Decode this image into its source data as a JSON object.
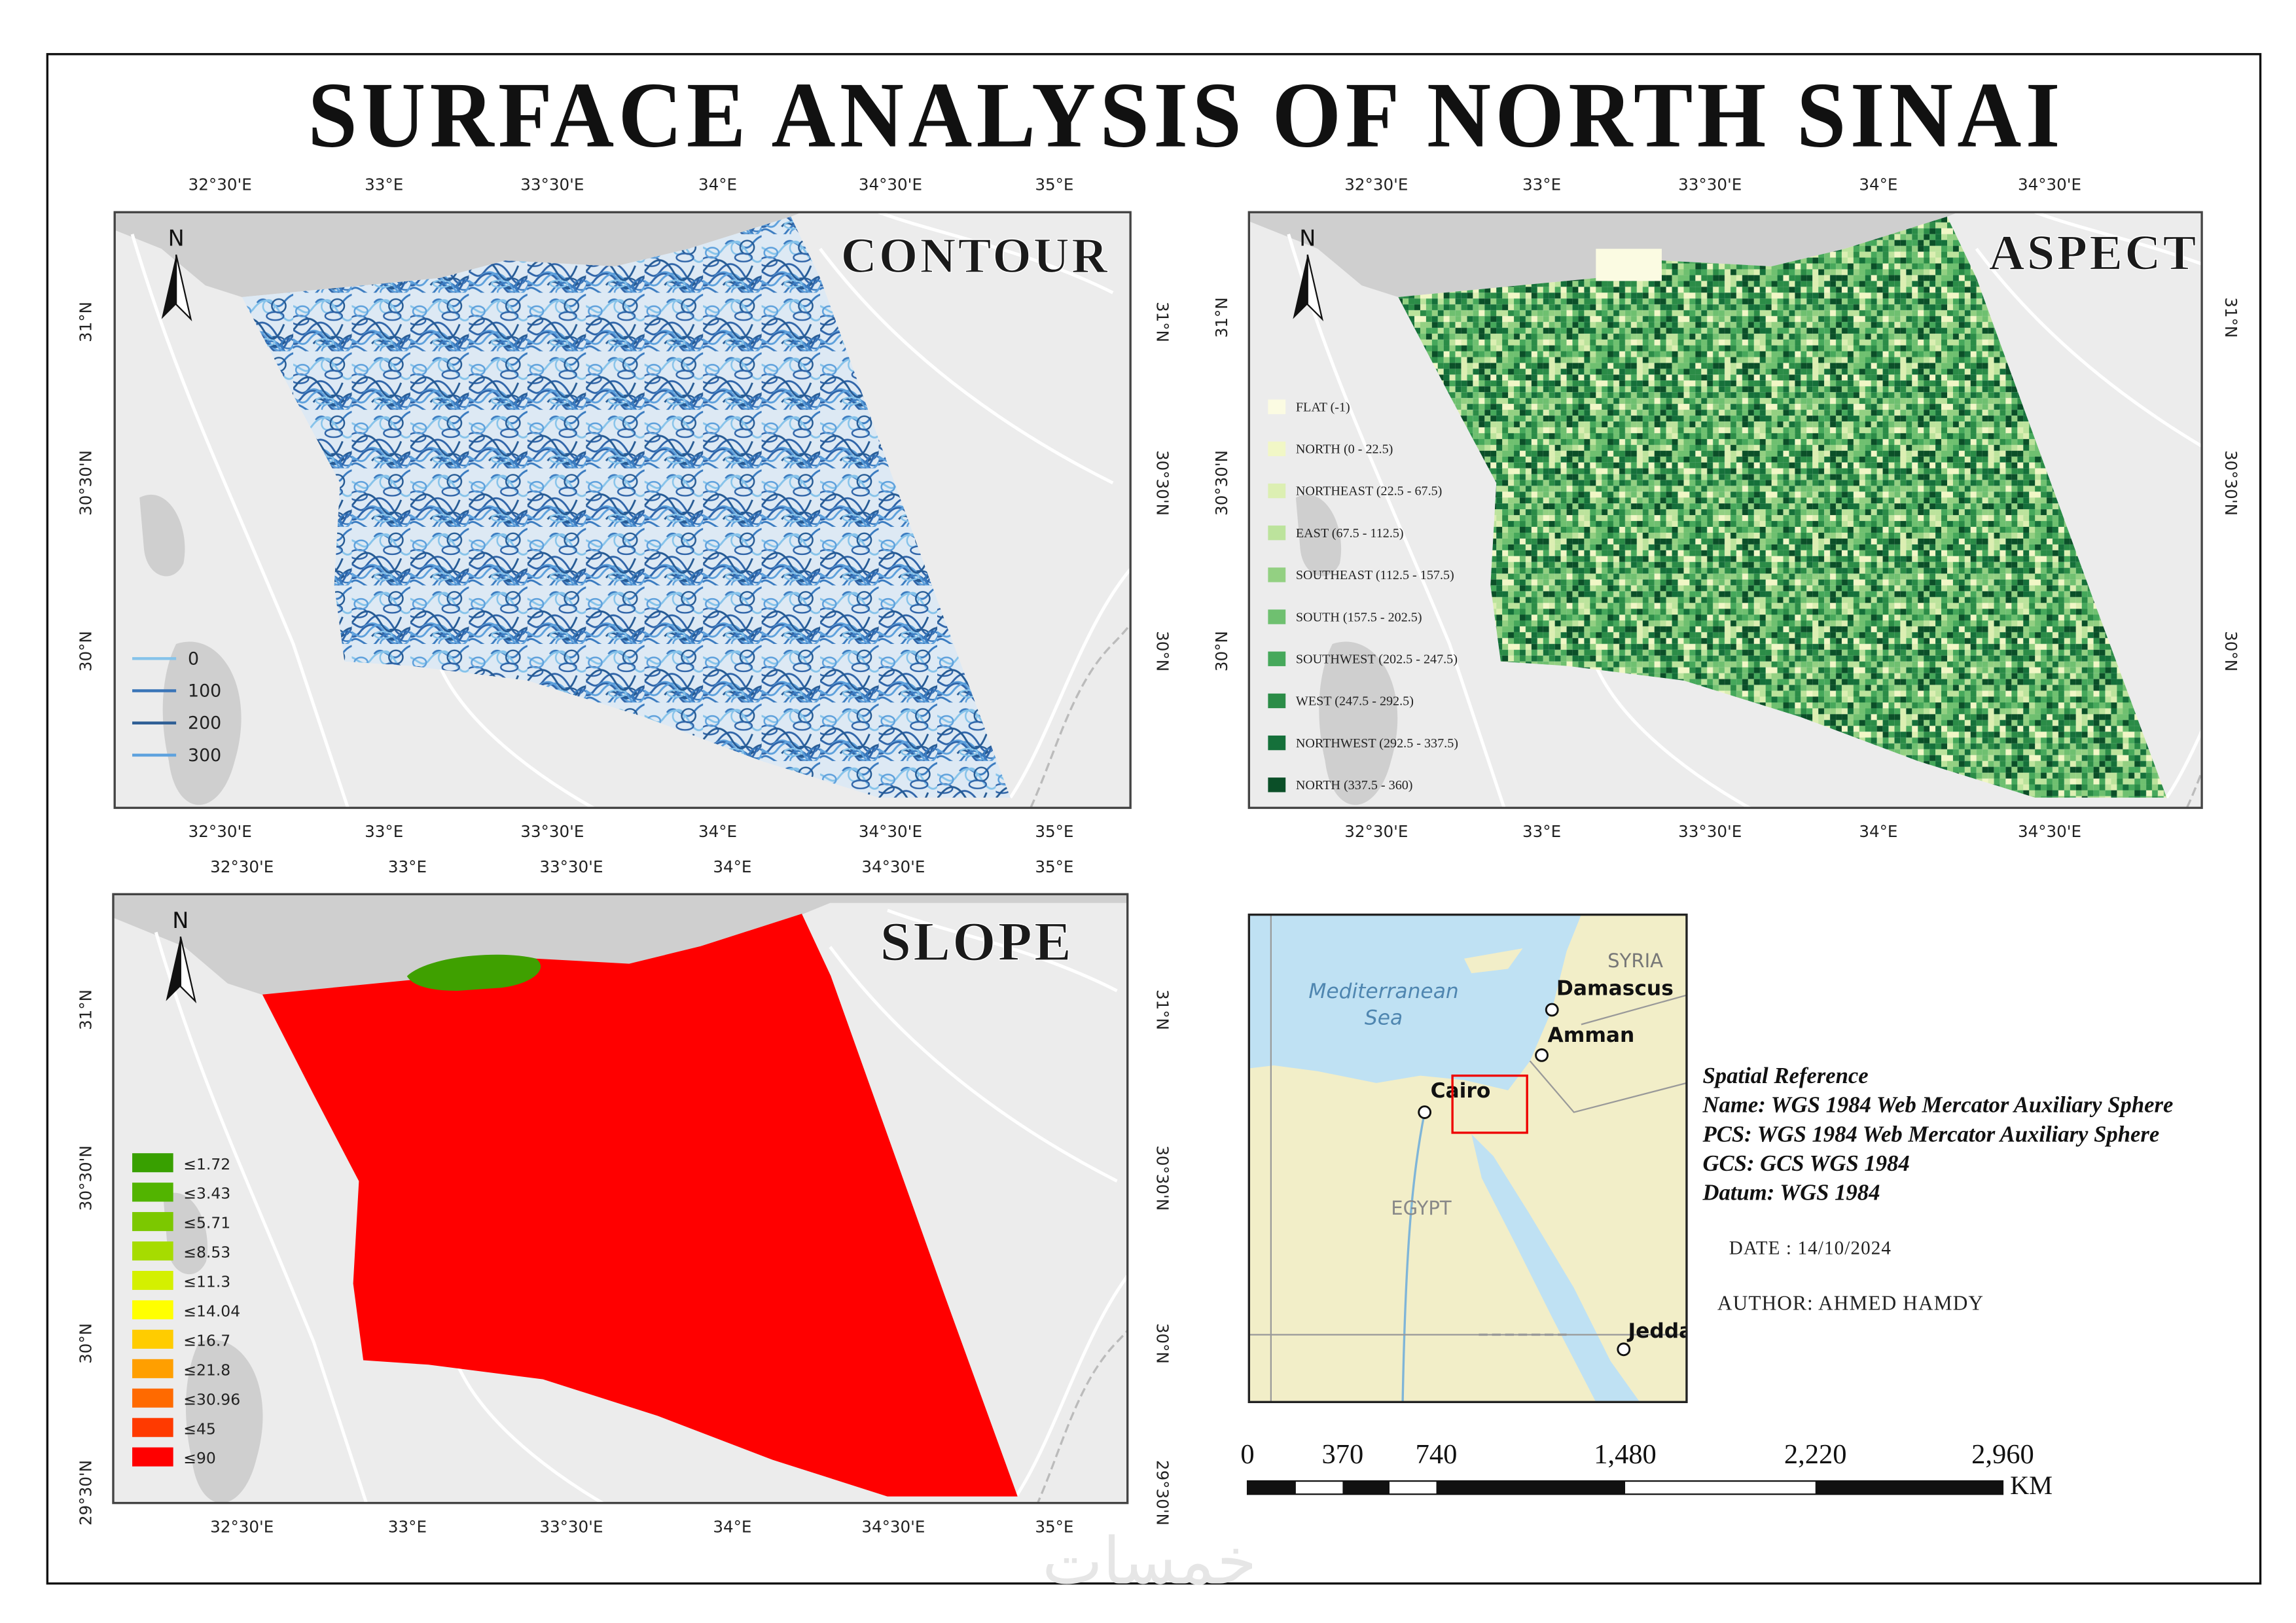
{
  "title": "SURFACE ANALYSIS OF NORTH SINAI",
  "panels": [
    {
      "title": "CONTOUR",
      "north": "N",
      "top_labels": [
        "32°30'E",
        "33°E",
        "33°30'E",
        "34°E",
        "34°30'E",
        "35°E"
      ],
      "bottom_labels": [
        "32°30'E",
        "33°E",
        "33°30'E",
        "34°E",
        "34°30'E",
        "35°E"
      ],
      "left_labels": [
        "31°N",
        "30°30'N",
        "30°N"
      ],
      "right_labels": [
        "31°N",
        "30°30'N",
        "30°N"
      ],
      "legend": [
        {
          "label": "0",
          "color": "#86c3ea"
        },
        {
          "label": "100",
          "color": "#3a75b8"
        },
        {
          "label": "200",
          "color": "#2f5f95"
        },
        {
          "label": "300",
          "color": "#5ea2de"
        }
      ]
    },
    {
      "title": "ASPECT",
      "north": "N",
      "top_labels": [
        "32°30'E",
        "33°E",
        "33°30'E",
        "34°E",
        "34°30'E"
      ],
      "bottom_labels": [
        "32°30'E",
        "33°E",
        "33°30'E",
        "34°E",
        "34°30'E"
      ],
      "left_labels": [
        "31°N",
        "30°30'N",
        "30°N"
      ],
      "right_labels": [
        "31°N",
        "30°30'N",
        "30°N"
      ],
      "legend": [
        {
          "label": "FLAT (-1)",
          "color": "#fbfbe2"
        },
        {
          "label": "NORTH (0 - 22.5)",
          "color": "#f1f7c6"
        },
        {
          "label": "NORTHEAST (22.5 - 67.5)",
          "color": "#dcefb2"
        },
        {
          "label": "EAST (67.5 - 112.5)",
          "color": "#bce39c"
        },
        {
          "label": "SOUTHEAST (112.5 - 157.5)",
          "color": "#93d082"
        },
        {
          "label": "SOUTH (157.5 - 202.5)",
          "color": "#6fc070"
        },
        {
          "label": "SOUTHWEST (202.5 - 247.5)",
          "color": "#46a85b"
        },
        {
          "label": "WEST (247.5 - 292.5)",
          "color": "#2b8c47"
        },
        {
          "label": "NORTHWEST (292.5 - 337.5)",
          "color": "#15703a"
        },
        {
          "label": "NORTH (337.5 - 360)",
          "color": "#0b4f28"
        }
      ]
    },
    {
      "title": "SLOPE",
      "north": "N",
      "top_labels": [
        "32°30'E",
        "33°E",
        "33°30'E",
        "34°E",
        "34°30'E",
        "35°E"
      ],
      "bottom_labels": [
        "32°30'E",
        "33°E",
        "33°30'E",
        "34°E",
        "34°30'E",
        "35°E"
      ],
      "left_labels": [
        "31°N",
        "30°30'N",
        "30°N",
        "29°30'N"
      ],
      "right_labels": [
        "31°N",
        "30°30'N",
        "30°N",
        "29°30'N"
      ],
      "legend": [
        {
          "label": "≤1.72",
          "color": "#38a000"
        },
        {
          "label": "≤3.43",
          "color": "#52b400"
        },
        {
          "label": "≤5.71",
          "color": "#7cc800"
        },
        {
          "label": "≤8.53",
          "color": "#a6dc00"
        },
        {
          "label": "≤11.3",
          "color": "#d4f000"
        },
        {
          "label": "≤14.04",
          "color": "#ffff00"
        },
        {
          "label": "≤16.7",
          "color": "#ffcc00"
        },
        {
          "label": "≤21.8",
          "color": "#ff9f00"
        },
        {
          "label": "≤30.96",
          "color": "#ff6a00"
        },
        {
          "label": "≤45",
          "color": "#ff3a00"
        },
        {
          "label": "≤90",
          "color": "#ff0000"
        }
      ]
    }
  ],
  "inset": {
    "labels": [
      "Mediterranean",
      "Sea",
      "SYRIA",
      "Damascus",
      "Amman",
      "Cairo",
      "EGYPT",
      "Jedda"
    ]
  },
  "spatial_reference": [
    "Spatial Reference",
    "Name: WGS 1984 Web Mercator Auxiliary Sphere",
    "PCS: WGS 1984 Web Mercator Auxiliary Sphere",
    "GCS: GCS WGS 1984",
    "Datum: WGS 1984"
  ],
  "date": "DATE : 14/10/2024",
  "author": "AUTHOR: AHMED HAMDY",
  "scale_bar": {
    "labels": [
      "0",
      "370",
      "740",
      "1,480",
      "2,220",
      "2,960"
    ],
    "unit": "KM"
  },
  "watermark": "خمسات"
}
